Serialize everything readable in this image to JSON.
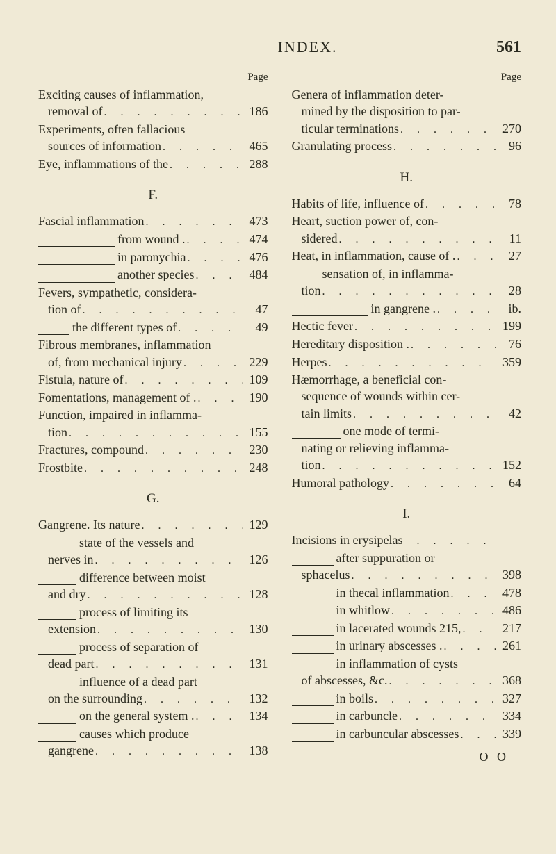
{
  "header": {
    "title": "INDEX.",
    "pageno": "561"
  },
  "pageLabel": "Page",
  "left": {
    "top": [
      {
        "type": "wrap",
        "l1": "Exciting causes of inflammation,",
        "l2": "removal of",
        "num": "186"
      },
      {
        "type": "wrap",
        "l1": "Experiments, often fallacious",
        "l2": "sources of information",
        "num": "465"
      },
      {
        "type": "plain",
        "text": "Eye, inflammations of the",
        "num": "288"
      }
    ],
    "F": [
      {
        "type": "plain",
        "text": "Fascial inflammation",
        "num": "473"
      },
      {
        "type": "rule",
        "rule": 110,
        "text": " from wound .",
        "num": "474"
      },
      {
        "type": "rule",
        "rule": 110,
        "text": " in paronychia",
        "num": "476"
      },
      {
        "type": "rule",
        "rule": 110,
        "text": " another species",
        "num": "484"
      },
      {
        "type": "wrap",
        "l1": "Fevers, sympathetic, considera-",
        "l2": "tion of",
        "num": "47"
      },
      {
        "type": "rule",
        "rule": 45,
        "text": " the different types of",
        "num": "49"
      },
      {
        "type": "wrap",
        "l1": "Fibrous membranes, inflammation",
        "l2": "of, from mechanical injury",
        "num": "229"
      },
      {
        "type": "plain",
        "text": "Fistula, nature of",
        "num": "109"
      },
      {
        "type": "plain",
        "text": "Fomentations, management of .",
        "num": "190"
      },
      {
        "type": "wrap",
        "l1": "Function, impaired in inflamma-",
        "l2": "tion",
        "num": "155"
      },
      {
        "type": "plain",
        "text": "Fractures, compound",
        "num": "230"
      },
      {
        "type": "plain",
        "text": "Frostbite",
        "num": "248"
      }
    ],
    "G": [
      {
        "type": "plain",
        "text": "Gangrene. Its nature",
        "num": "129"
      },
      {
        "type": "wraprule",
        "rule": 55,
        "l1": " state of the vessels and",
        "l2": "nerves in",
        "num": "126"
      },
      {
        "type": "wraprule",
        "rule": 55,
        "l1": " difference between moist",
        "l2": "and dry",
        "num": "128"
      },
      {
        "type": "wraprule",
        "rule": 55,
        "l1": " process of limiting its",
        "l2": "extension",
        "num": "130"
      },
      {
        "type": "wraprule",
        "rule": 55,
        "l1": " process of separation of",
        "l2": "dead part",
        "num": "131"
      },
      {
        "type": "wraprule",
        "rule": 55,
        "l1": " influence of a dead part",
        "l2": "on the surrounding",
        "num": "132"
      },
      {
        "type": "rule",
        "rule": 55,
        "text": " on the general system .",
        "num": "134"
      },
      {
        "type": "wraprule",
        "rule": 55,
        "l1": " causes which produce",
        "l2": "gangrene",
        "num": "138"
      }
    ]
  },
  "right": {
    "top": [
      {
        "type": "wrap3",
        "l1": "Genera of inflammation deter-",
        "l2": "mined by the disposition to par-",
        "l3": "ticular terminations",
        "num": "270"
      },
      {
        "type": "plain",
        "text": "Granulating process",
        "num": "96"
      }
    ],
    "H": [
      {
        "type": "plain",
        "text": "Habits of life, influence of",
        "num": "78"
      },
      {
        "type": "wrap",
        "l1": "Heart, suction power of, con-",
        "l2": "sidered",
        "num": "11"
      },
      {
        "type": "plain",
        "text": "Heat, in inflammation, cause of .",
        "num": "27"
      },
      {
        "type": "wraprule",
        "rule": 40,
        "l1": " sensation of, in inflamma-",
        "l2": "tion",
        "num": "28"
      },
      {
        "type": "rule",
        "rule": 110,
        "text": " in gangrene .",
        "num": "ib."
      },
      {
        "type": "plain",
        "text": "Hectic fever",
        "num": "199"
      },
      {
        "type": "plain",
        "text": "Hereditary disposition .",
        "num": "76"
      },
      {
        "type": "plain",
        "text": "Herpes",
        "num": "359"
      },
      {
        "type": "wrap3",
        "l1": "Hæmorrhage, a beneficial con-",
        "l2": "sequence of wounds within cer-",
        "l3": "tain limits",
        "num": "42"
      },
      {
        "type": "wraprule3",
        "rule": 70,
        "l1": " one mode of termi-",
        "l2": "nating or relieving inflamma-",
        "l3": "tion",
        "num": "152"
      },
      {
        "type": "plain",
        "text": "Humoral pathology",
        "num": "64"
      }
    ],
    "I": [
      {
        "type": "plain",
        "text": "Incisions in erysipelas—",
        "num": ""
      },
      {
        "type": "wraprule",
        "rule": 60,
        "l1": " after suppuration or",
        "l2": "sphacelus",
        "num": "398"
      },
      {
        "type": "rule",
        "rule": 60,
        "text": " in thecal inflammation",
        "num": "478"
      },
      {
        "type": "rule",
        "rule": 60,
        "text": " in whitlow",
        "num": "486"
      },
      {
        "type": "rule",
        "rule": 60,
        "text": " in lacerated wounds 215,",
        "num": "217"
      },
      {
        "type": "rule",
        "rule": 60,
        "text": " in urinary abscesses .",
        "num": "261"
      },
      {
        "type": "wraprule",
        "rule": 60,
        "l1": " in inflammation of cysts",
        "l2": "of abscesses, &c.",
        "num": "368"
      },
      {
        "type": "rule",
        "rule": 60,
        "text": " in boils",
        "num": "327"
      },
      {
        "type": "rule",
        "rule": 60,
        "text": " in carbuncle",
        "num": "334"
      },
      {
        "type": "rule",
        "rule": 60,
        "text": " in carbuncular abscesses",
        "num": "339"
      }
    ]
  },
  "sig": "O O"
}
